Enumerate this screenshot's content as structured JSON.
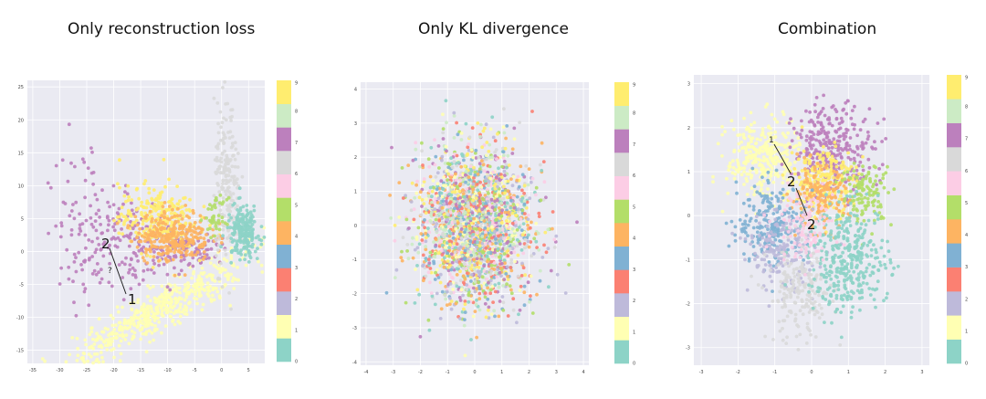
{
  "titles": [
    "Only reconstruction loss",
    "Only KL divergence",
    "Combination"
  ],
  "colorbar": {
    "labels": [
      "0",
      "1",
      "2",
      "3",
      "4",
      "5",
      "6",
      "7",
      "8",
      "9"
    ],
    "colors": [
      "#8dd3c7",
      "#ffffb3",
      "#bebada",
      "#fb8072",
      "#80b1d3",
      "#fdb462",
      "#b3de69",
      "#fccde5",
      "#d9d9d9",
      "#bc80bd",
      "#ccebc5",
      "#ffed6f"
    ]
  },
  "chart_data": [
    {
      "type": "scatter",
      "title": "Only reconstruction loss",
      "xlim": [
        -36,
        8
      ],
      "ylim": [
        -17,
        26
      ],
      "xticks": [
        -35,
        -30,
        -25,
        -20,
        -15,
        -10,
        -5,
        0,
        5
      ],
      "yticks": [
        -15,
        -10,
        -5,
        0,
        5,
        10,
        15,
        20,
        25
      ],
      "grid": true,
      "annotations": [
        "2",
        "?",
        "1"
      ],
      "clusters": [
        {
          "label": "1",
          "color": "#ffffb3",
          "cx": -12,
          "cy": -9,
          "sx": 8,
          "sy": 2.5,
          "n": 520
        },
        {
          "label": "7",
          "color": "#bc80bd",
          "cx": -18,
          "cy": 0,
          "sx": 8,
          "sy": 2.5,
          "n": 360
        },
        {
          "label": "9",
          "color": "#ffed6f",
          "cx": -12,
          "cy": 5,
          "sx": 3.5,
          "sy": 2.5,
          "n": 260
        },
        {
          "label": "4",
          "color": "#fdb462",
          "cx": -9,
          "cy": 2.5,
          "sx": 3.5,
          "sy": 2,
          "n": 280
        },
        {
          "label": "6",
          "color": "#d9d9d9",
          "cx": 1,
          "cy": 10,
          "sx": 1.2,
          "sy": 6,
          "n": 200
        },
        {
          "label": "0",
          "color": "#8dd3c7",
          "cx": 4,
          "cy": 3,
          "sx": 1.5,
          "sy": 2,
          "n": 200
        },
        {
          "label": "5",
          "color": "#b3de69",
          "cx": -1,
          "cy": 5,
          "sx": 1,
          "sy": 1.5,
          "n": 40
        }
      ]
    },
    {
      "type": "scatter",
      "title": "Only KL divergence",
      "xlim": [
        -4.2,
        4.2
      ],
      "ylim": [
        -4.1,
        4.2
      ],
      "xticks": [
        -4,
        -3,
        -2,
        -1,
        0,
        1,
        2,
        3,
        4
      ],
      "yticks": [
        -4,
        -3,
        -2,
        -1,
        0,
        1,
        2,
        3,
        4
      ],
      "grid": true,
      "clusters": [
        {
          "label": "mixed",
          "color": "mixed",
          "cx": 0,
          "cy": 0,
          "sx": 1.05,
          "sy": 1.15,
          "n": 2200
        }
      ]
    },
    {
      "type": "scatter",
      "title": "Combination",
      "xlim": [
        -3.2,
        3.2
      ],
      "ylim": [
        -3.4,
        3.2
      ],
      "xticks": [
        -3,
        -2,
        -1,
        0,
        1,
        2,
        3
      ],
      "yticks": [
        -3,
        -2,
        -1,
        0,
        1,
        2,
        3
      ],
      "grid": true,
      "annotations": [
        "1",
        "2",
        "2"
      ],
      "clusters": [
        {
          "label": "1",
          "color": "#ffffb3",
          "cx": -1.3,
          "cy": 1.3,
          "sx": 0.5,
          "sy": 0.45,
          "n": 320
        },
        {
          "label": "7",
          "color": "#bc80bd",
          "cx": 0.6,
          "cy": 1.5,
          "sx": 0.55,
          "sy": 0.5,
          "n": 320
        },
        {
          "label": "9",
          "color": "#ffed6f",
          "cx": 0.3,
          "cy": 0.8,
          "sx": 0.45,
          "sy": 0.4,
          "n": 220
        },
        {
          "label": "4",
          "color": "#fdb462",
          "cx": 0.2,
          "cy": 0.4,
          "sx": 0.4,
          "sy": 0.35,
          "n": 160
        },
        {
          "label": "5",
          "color": "#b3de69",
          "cx": 1.5,
          "cy": 0.5,
          "sx": 0.35,
          "sy": 0.35,
          "n": 120
        },
        {
          "label": "3",
          "color": "#80b1d3",
          "cx": -1.1,
          "cy": -0.2,
          "sx": 0.45,
          "sy": 0.45,
          "n": 220
        },
        {
          "label": "2",
          "color": "#bebada",
          "cx": -0.8,
          "cy": -0.8,
          "sx": 0.45,
          "sy": 0.45,
          "n": 180
        },
        {
          "label": "6",
          "color": "#d9d9d9",
          "cx": -0.3,
          "cy": -1.8,
          "sx": 0.45,
          "sy": 0.55,
          "n": 200
        },
        {
          "label": "0",
          "color": "#8dd3c7",
          "cx": 1.0,
          "cy": -1.0,
          "sx": 0.55,
          "sy": 0.6,
          "n": 360
        },
        {
          "label": "8",
          "color": "#fccde5",
          "cx": -0.2,
          "cy": -0.2,
          "sx": 0.4,
          "sy": 0.4,
          "n": 100
        }
      ]
    }
  ]
}
